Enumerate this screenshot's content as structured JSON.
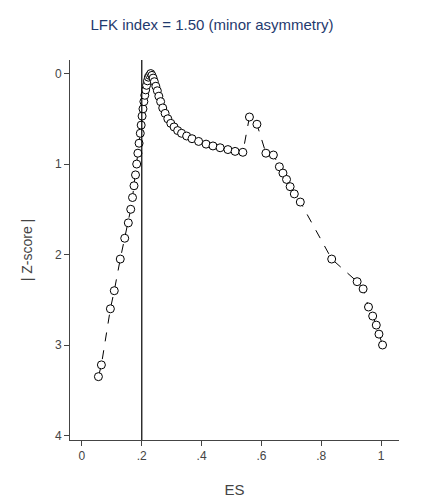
{
  "chart_data": {
    "type": "line",
    "title": "LFK index = 1.50 (minor asymmetry)",
    "title_color": "#1f3a6e",
    "x_label": "ES",
    "y_label": "| Z-score |",
    "xlim": [
      -0.04,
      1.06
    ],
    "ylim": [
      4.05,
      -0.15
    ],
    "xticks": [
      0,
      {
        "value": 0.2,
        "label": ".2"
      },
      {
        "value": 0.4,
        "label": ".4"
      },
      {
        "value": 0.6,
        "label": ".6"
      },
      {
        "value": 0.8,
        "label": ".8"
      },
      1
    ],
    "yticks": [
      0,
      1,
      2,
      3,
      4
    ],
    "grid": false,
    "vline_x": 0.2,
    "series": [
      {
        "color": "black",
        "marker": "circle",
        "line_style": "dashed",
        "x": [
          0.055,
          0.065,
          0.095,
          0.108,
          0.128,
          0.143,
          0.155,
          0.163,
          0.169,
          0.174,
          0.179,
          0.183,
          0.187,
          0.191,
          0.195,
          0.198,
          0.201,
          0.204,
          0.207,
          0.21,
          0.213,
          0.216,
          0.219,
          0.222,
          0.226,
          0.23,
          0.234,
          0.238,
          0.242,
          0.247,
          0.252,
          0.257,
          0.263,
          0.27,
          0.278,
          0.287,
          0.297,
          0.308,
          0.32,
          0.333,
          0.35,
          0.368,
          0.39,
          0.415,
          0.438,
          0.462,
          0.488,
          0.512,
          0.538,
          0.56,
          0.585,
          0.615,
          0.64,
          0.66,
          0.672,
          0.684,
          0.696,
          0.71,
          0.73,
          0.835,
          0.92,
          0.94,
          0.958,
          0.972,
          0.984,
          0.993,
          1.005
        ],
        "values": [
          3.35,
          3.22,
          2.6,
          2.4,
          2.05,
          1.82,
          1.65,
          1.5,
          1.37,
          1.24,
          1.12,
          1.0,
          0.88,
          0.77,
          0.66,
          0.57,
          0.47,
          0.39,
          0.31,
          0.24,
          0.18,
          0.13,
          0.08,
          0.04,
          0.02,
          0.0,
          0.02,
          0.05,
          0.09,
          0.14,
          0.19,
          0.25,
          0.31,
          0.38,
          0.44,
          0.5,
          0.55,
          0.59,
          0.63,
          0.66,
          0.69,
          0.72,
          0.75,
          0.78,
          0.8,
          0.82,
          0.84,
          0.86,
          0.87,
          0.48,
          0.56,
          0.88,
          0.9,
          1.03,
          1.1,
          1.17,
          1.25,
          1.33,
          1.42,
          2.05,
          2.3,
          2.38,
          2.58,
          2.68,
          2.78,
          2.88,
          3.0
        ]
      }
    ]
  }
}
